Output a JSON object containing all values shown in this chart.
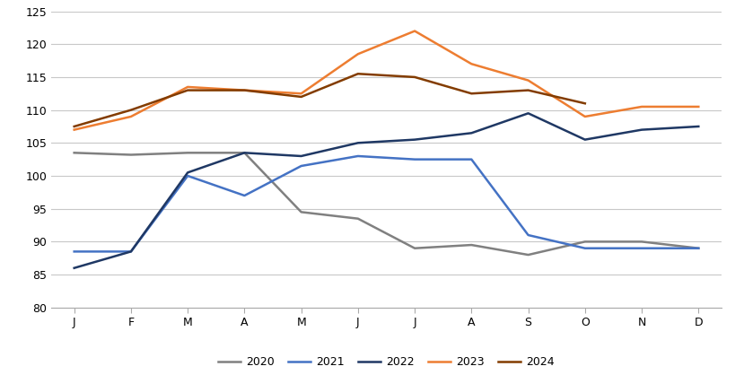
{
  "months": [
    "J",
    "F",
    "M",
    "A",
    "M",
    "J",
    "J",
    "A",
    "S",
    "O",
    "N",
    "D"
  ],
  "series": {
    "2020": [
      103.5,
      103.2,
      103.5,
      103.5,
      94.5,
      93.5,
      89.0,
      89.5,
      88.0,
      90.0,
      90.0,
      89.0
    ],
    "2021": [
      88.5,
      88.5,
      100.0,
      97.0,
      101.5,
      103.0,
      102.5,
      102.5,
      91.0,
      89.0,
      89.0,
      89.0
    ],
    "2022": [
      86.0,
      88.5,
      100.5,
      103.5,
      103.0,
      105.0,
      105.5,
      106.5,
      109.5,
      105.5,
      107.0,
      107.5
    ],
    "2023": [
      107.0,
      109.0,
      113.5,
      113.0,
      112.5,
      118.5,
      122.0,
      117.0,
      114.5,
      109.0,
      110.5,
      110.5
    ],
    "2024": [
      107.5,
      110.0,
      113.0,
      113.0,
      112.0,
      115.5,
      115.0,
      112.5,
      113.0,
      111.0,
      null,
      null
    ]
  },
  "colors": {
    "2020": "#808080",
    "2021": "#4472C4",
    "2022": "#1F3864",
    "2023": "#ED7D31",
    "2024": "#833C00"
  },
  "ylim": [
    80,
    125
  ],
  "yticks": [
    80,
    85,
    90,
    95,
    100,
    105,
    110,
    115,
    120,
    125
  ],
  "background_color": "#ffffff",
  "grid_color": "#c8c8c8",
  "legend_order": [
    "2020",
    "2021",
    "2022",
    "2023",
    "2024"
  ]
}
